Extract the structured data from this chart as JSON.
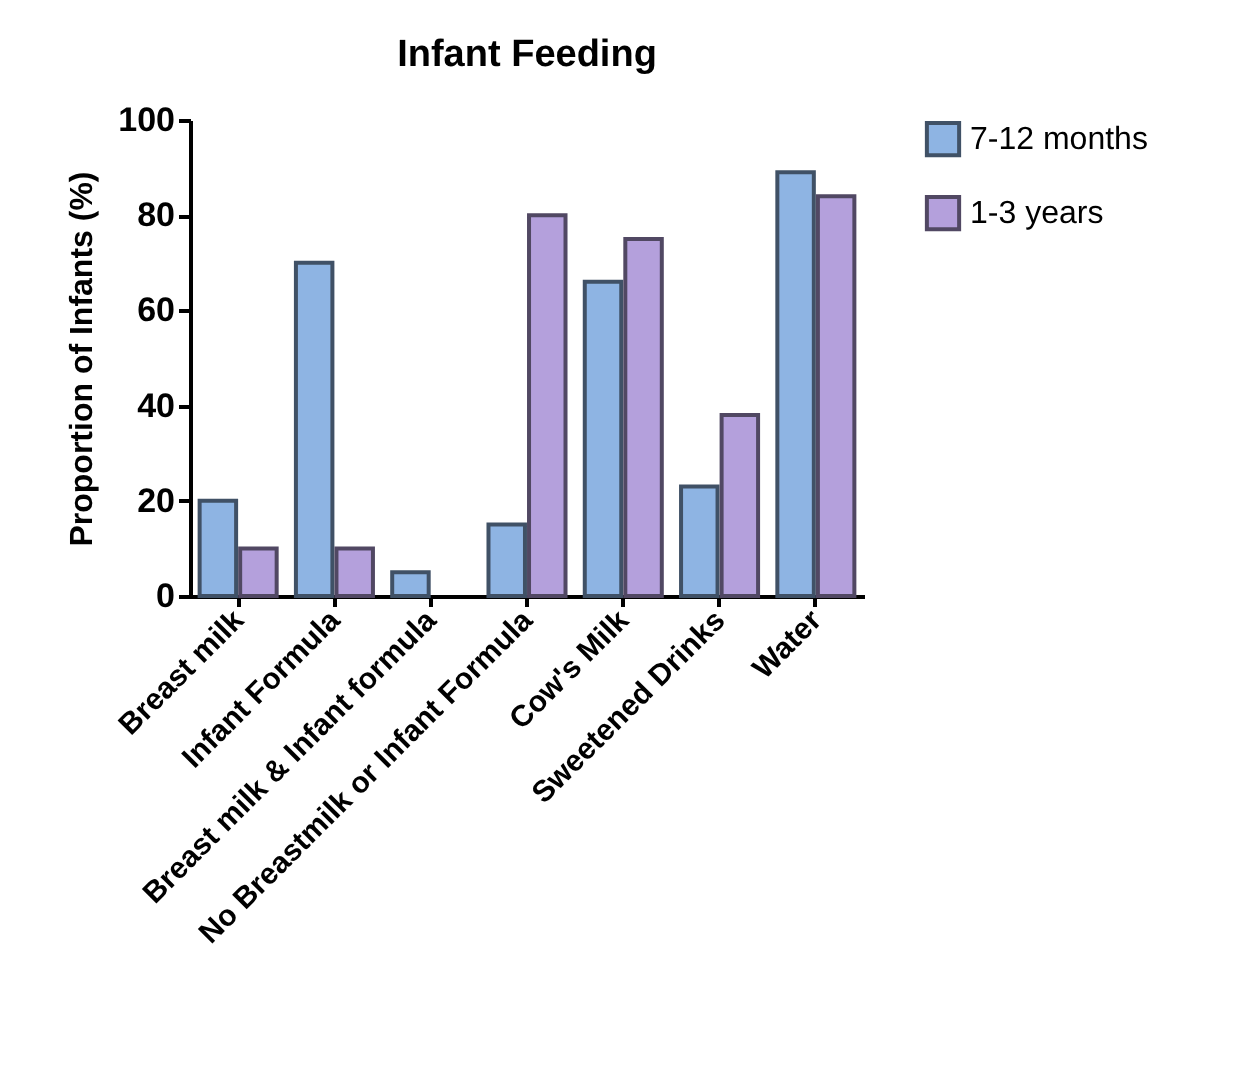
{
  "chart_data": {
    "type": "bar",
    "title": "Infant Feeding",
    "ylabel": "Proportion of Infants (%)",
    "categories": [
      "Breast milk",
      "Infant Formula",
      "Breast milk & Infant formula",
      "No Breastmilk or Infant Formula",
      "Cow's Milk",
      "Sweetened Drinks",
      "Water"
    ],
    "series": [
      {
        "name": "7-12 months",
        "color": "#8eb4e3",
        "values": [
          20,
          70,
          5,
          15,
          66,
          23,
          89
        ]
      },
      {
        "name": "1-3 years",
        "color": "#b4a0dc",
        "values": [
          10,
          10,
          null,
          80,
          75,
          38,
          84
        ]
      }
    ],
    "ylim": [
      0,
      100
    ],
    "yticks": [
      0,
      20,
      40,
      60,
      80,
      100
    ],
    "grid": false,
    "legend": "top right"
  }
}
